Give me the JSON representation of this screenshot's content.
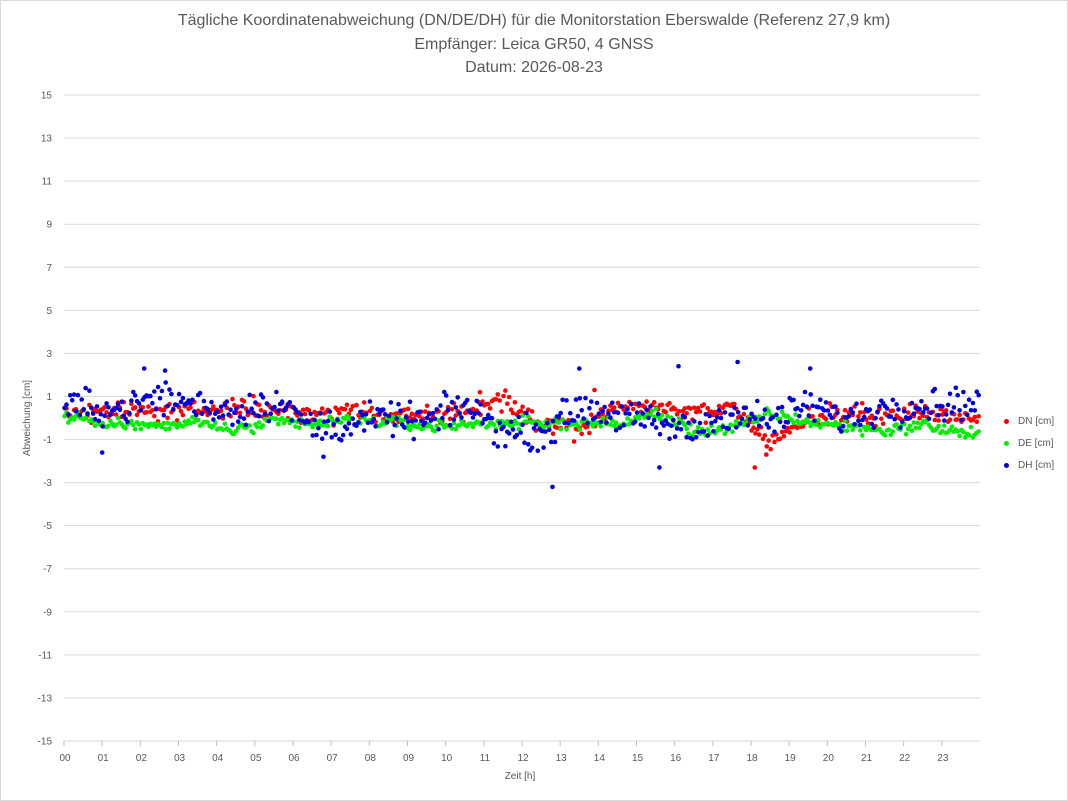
{
  "chart_data": {
    "type": "scatter",
    "title": "Tägliche Koordinatenabweichung (DN/DE/DH) für die Monitorstation Eberswalde (Referenz 27,9 km)",
    "subtitle_lines": [
      "Empfänger: Leica GR50, 4 GNSS",
      "Datum: 2026-08-23"
    ],
    "xlabel": "Zeit [h]",
    "ylabel": "Abweichung [cm]",
    "xlim": [
      0,
      24
    ],
    "ylim": [
      -15,
      15
    ],
    "x_tick_labels": [
      "00",
      "01",
      "02",
      "03",
      "04",
      "05",
      "06",
      "07",
      "08",
      "09",
      "10",
      "11",
      "12",
      "13",
      "14",
      "15",
      "16",
      "17",
      "18",
      "19",
      "20",
      "21",
      "22",
      "23"
    ],
    "y_ticks": [
      15,
      13,
      11,
      9,
      7,
      5,
      3,
      1,
      -1,
      -3,
      -5,
      -7,
      -9,
      -11,
      -13,
      -15
    ],
    "grid": "horizontal",
    "legend_position": "right",
    "sampling_interval_h": 0.05,
    "series": [
      {
        "name": "DN [cm]",
        "color": "#ff0000",
        "hourly_values": [
          0.3,
          0.4,
          0.3,
          0.4,
          0.5,
          0.4,
          0.1,
          0.3,
          0.2,
          0.0,
          0.3,
          0.8,
          -0.2,
          -0.6,
          0.7,
          0.4,
          0.3,
          0.5,
          -1.2,
          0.0,
          0.2,
          0.1,
          0.3,
          0.0
        ],
        "notable_points": [
          {
            "x": 18.1,
            "y": -2.3
          },
          {
            "x": 18.4,
            "y": -1.7
          },
          {
            "x": 13.9,
            "y": 1.3
          },
          {
            "x": 10.9,
            "y": 1.2
          }
        ]
      },
      {
        "name": "DE [cm]",
        "color": "#00ee00",
        "hourly_values": [
          0.0,
          -0.3,
          -0.4,
          -0.2,
          -0.6,
          -0.2,
          -0.3,
          -0.1,
          -0.2,
          -0.4,
          -0.3,
          -0.2,
          -0.3,
          -0.2,
          -0.3,
          0.2,
          -0.6,
          -0.5,
          0.2,
          -0.2,
          -0.4,
          -0.6,
          -0.3,
          -0.7
        ],
        "notable_points": []
      },
      {
        "name": "DH [cm]",
        "color": "#0000dd",
        "hourly_values": [
          0.5,
          0.4,
          1.0,
          0.6,
          0.3,
          0.8,
          -0.4,
          -0.3,
          0.0,
          -0.2,
          0.6,
          -0.6,
          -0.7,
          0.5,
          0.2,
          -0.3,
          -0.6,
          0.3,
          -0.2,
          0.6,
          -0.1,
          0.5,
          0.6,
          0.7
        ],
        "notable_points": [
          {
            "x": 2.1,
            "y": 2.3
          },
          {
            "x": 2.65,
            "y": 2.2
          },
          {
            "x": 12.8,
            "y": -3.2
          },
          {
            "x": 13.5,
            "y": 2.3
          },
          {
            "x": 16.1,
            "y": 2.4
          },
          {
            "x": 17.65,
            "y": 2.6
          },
          {
            "x": 19.55,
            "y": 2.3
          },
          {
            "x": 15.6,
            "y": -2.3
          },
          {
            "x": 6.8,
            "y": -1.8
          },
          {
            "x": 1.0,
            "y": -1.6
          }
        ]
      }
    ]
  }
}
